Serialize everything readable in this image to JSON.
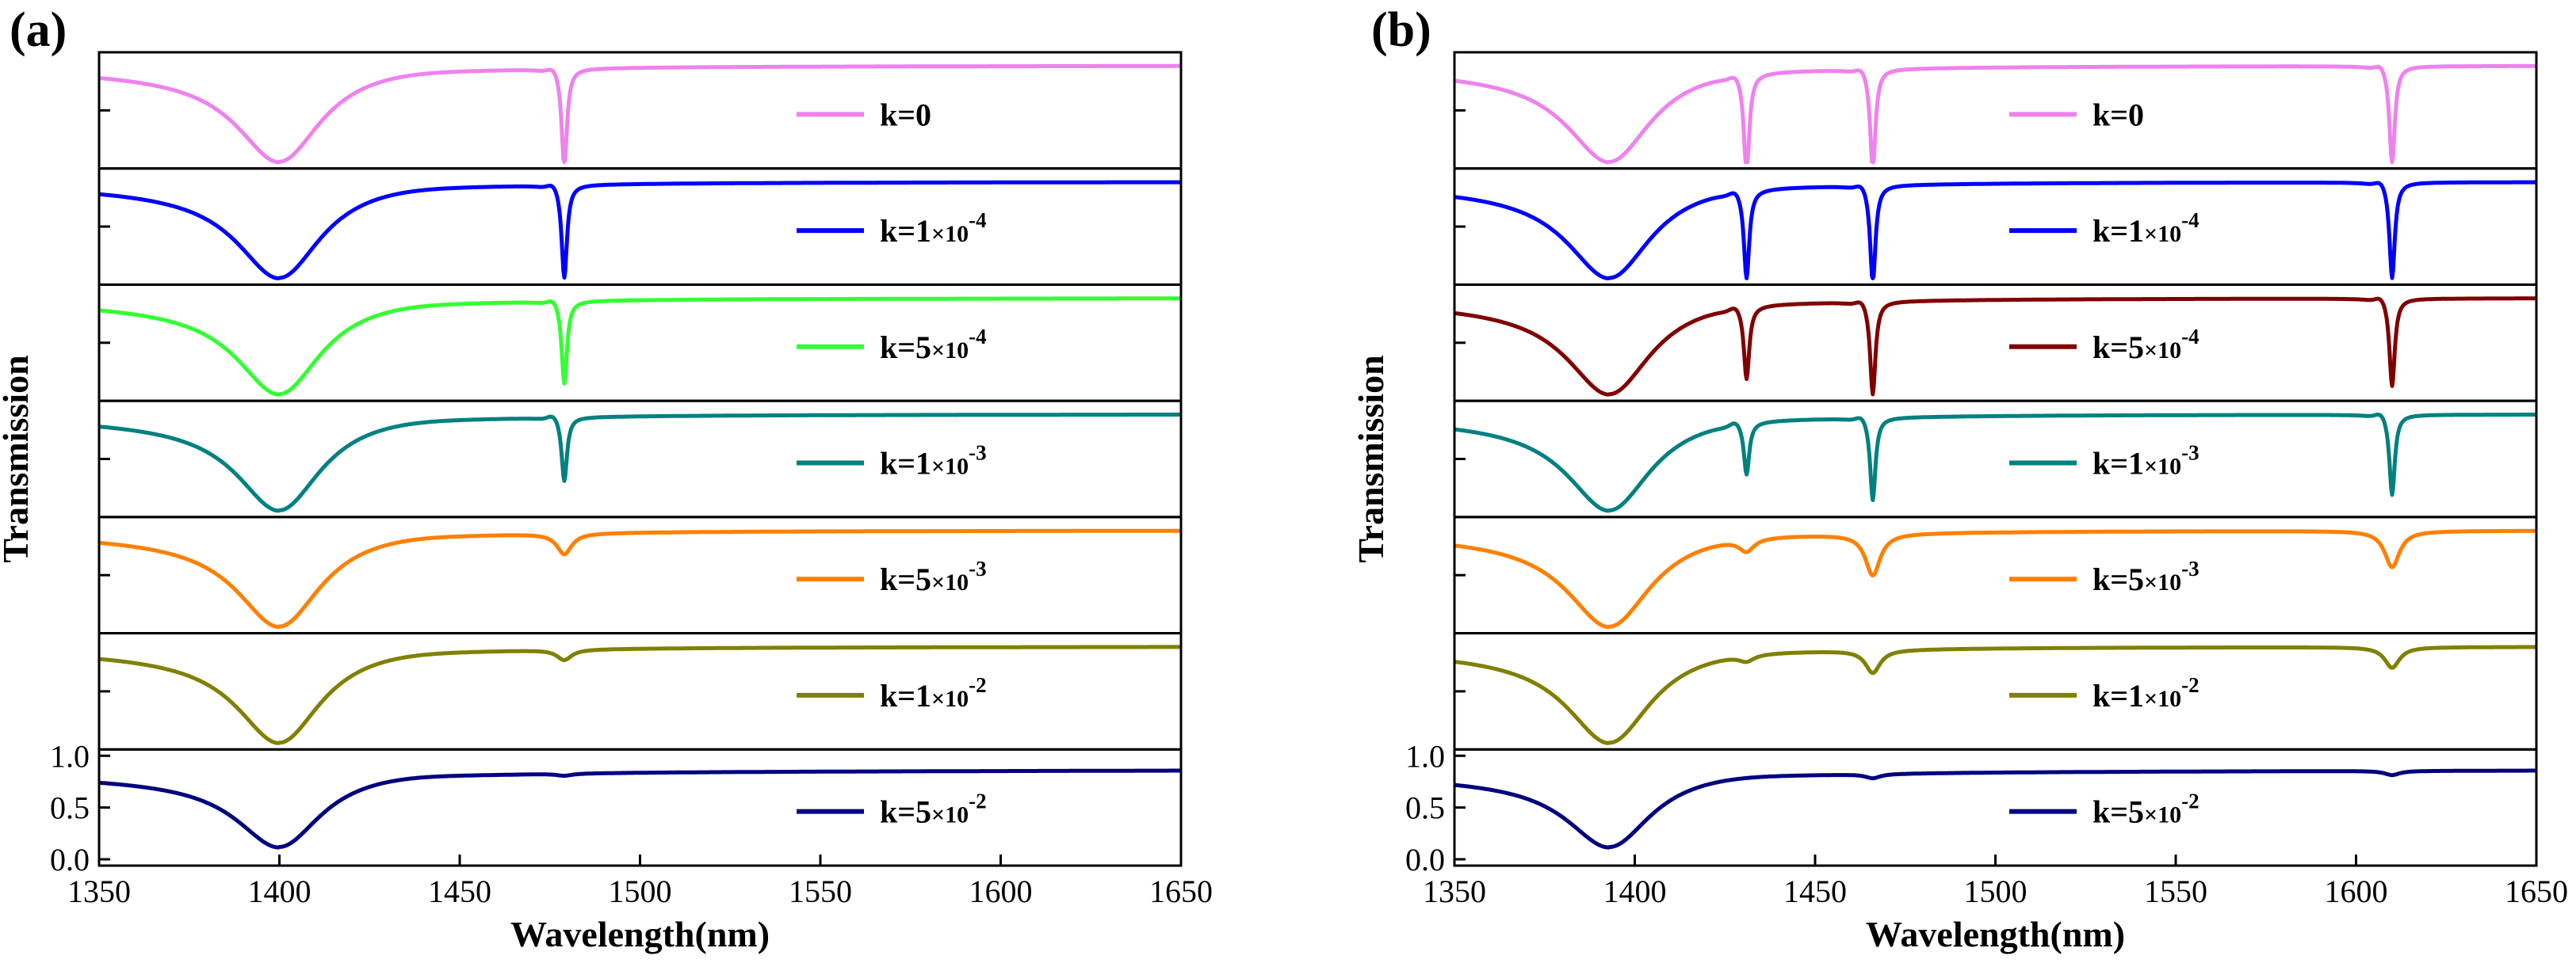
{
  "figure_labels": {
    "panel_a": "(a)",
    "panel_b": "(b)"
  },
  "axis": {
    "xlabel": "Wavelength(nm)",
    "ylabel": "Transmission",
    "x_ticks": [
      "1350",
      "1400",
      "1450",
      "1500",
      "1550",
      "1600",
      "1650"
    ],
    "y_ticks": [
      "0.0",
      "0.5",
      "1.0"
    ]
  },
  "legend_entries": [
    {
      "base": "k=0",
      "mult": "",
      "sup": ""
    },
    {
      "base": "k=1",
      "mult": "×10",
      "sup": "-4"
    },
    {
      "base": "k=5",
      "mult": "×10",
      "sup": "-4"
    },
    {
      "base": "k=1",
      "mult": "×10",
      "sup": "-3"
    },
    {
      "base": "k=5",
      "mult": "×10",
      "sup": "-3"
    },
    {
      "base": "k=1",
      "mult": "×10",
      "sup": "-2"
    },
    {
      "base": "k=5",
      "mult": "×10",
      "sup": "-2"
    }
  ],
  "colors": {
    "panel_a": [
      "#ee82ee",
      "#0000ff",
      "#33ff33",
      "#008080",
      "#ff8000",
      "#808000",
      "#000080"
    ],
    "panel_b": [
      "#ee82ee",
      "#0000ff",
      "#800000",
      "#008080",
      "#ff8000",
      "#808000",
      "#000080"
    ]
  },
  "chart_data": [
    {
      "type": "line",
      "panel": "(a)",
      "xlabel": "Wavelength(nm)",
      "ylabel": "Transmission",
      "xlim": [
        1350,
        1650
      ],
      "ylim": [
        0.0,
        1.0
      ],
      "stacked": true,
      "series": [
        {
          "name": "k=0",
          "color": "#ee82ee",
          "broad_dip": {
            "center": 1400,
            "min": 0.0,
            "baseline": 0.93
          },
          "sharp_dips": [
            {
              "center": 1479,
              "depth": 0.95,
              "fano": true
            }
          ]
        },
        {
          "name": "k=1×10^-4",
          "color": "#0000ff",
          "broad_dip": {
            "center": 1400,
            "min": 0.0,
            "baseline": 0.93
          },
          "sharp_dips": [
            {
              "center": 1479,
              "depth": 0.9,
              "fano": true
            }
          ]
        },
        {
          "name": "k=5×10^-4",
          "color": "#33ff33",
          "broad_dip": {
            "center": 1400,
            "min": 0.0,
            "baseline": 0.93
          },
          "sharp_dips": [
            {
              "center": 1479,
              "depth": 0.8,
              "fano": true
            }
          ]
        },
        {
          "name": "k=1×10^-3",
          "color": "#008080",
          "broad_dip": {
            "center": 1400,
            "min": 0.0,
            "baseline": 0.93
          },
          "sharp_dips": [
            {
              "center": 1479,
              "depth": 0.62,
              "fano": true
            }
          ]
        },
        {
          "name": "k=5×10^-3",
          "color": "#ff8000",
          "broad_dip": {
            "center": 1400,
            "min": 0.0,
            "baseline": 0.93
          },
          "sharp_dips": [
            {
              "center": 1479,
              "depth": 0.2,
              "fano": false
            }
          ]
        },
        {
          "name": "k=1×10^-2",
          "color": "#808000",
          "broad_dip": {
            "center": 1400,
            "min": 0.0,
            "baseline": 0.93
          },
          "sharp_dips": [
            {
              "center": 1479,
              "depth": 0.1,
              "fano": false
            }
          ]
        },
        {
          "name": "k=5×10^-2",
          "color": "#000080",
          "broad_dip": {
            "center": 1400,
            "min": 0.12,
            "baseline": 0.85
          },
          "sharp_dips": [
            {
              "center": 1479,
              "depth": 0.02,
              "fano": false
            }
          ]
        }
      ]
    },
    {
      "type": "line",
      "panel": "(b)",
      "xlabel": "Wavelength(nm)",
      "ylabel": "Transmission",
      "xlim": [
        1350,
        1650
      ],
      "ylim": [
        0.0,
        1.0
      ],
      "stacked": true,
      "series": [
        {
          "name": "k=0",
          "color": "#ee82ee",
          "broad_dip": {
            "center": 1393,
            "min": 0.0,
            "baseline": 0.93
          },
          "sharp_dips": [
            {
              "center": 1431,
              "depth": 0.97,
              "fano": true
            },
            {
              "center": 1466,
              "depth": 0.97,
              "fano": true
            },
            {
              "center": 1610,
              "depth": 0.95,
              "fano": true
            }
          ]
        },
        {
          "name": "k=1×10^-4",
          "color": "#0000ff",
          "broad_dip": {
            "center": 1393,
            "min": 0.0,
            "baseline": 0.93
          },
          "sharp_dips": [
            {
              "center": 1431,
              "depth": 0.85,
              "fano": true
            },
            {
              "center": 1466,
              "depth": 0.95,
              "fano": true
            },
            {
              "center": 1610,
              "depth": 0.93,
              "fano": true
            }
          ]
        },
        {
          "name": "k=5×10^-4",
          "color": "#800000",
          "broad_dip": {
            "center": 1393,
            "min": 0.0,
            "baseline": 0.93
          },
          "sharp_dips": [
            {
              "center": 1431,
              "depth": 0.7,
              "fano": true
            },
            {
              "center": 1466,
              "depth": 0.9,
              "fano": true
            },
            {
              "center": 1610,
              "depth": 0.85,
              "fano": true
            }
          ]
        },
        {
          "name": "k=1×10^-3",
          "color": "#008080",
          "broad_dip": {
            "center": 1393,
            "min": 0.0,
            "baseline": 0.93
          },
          "sharp_dips": [
            {
              "center": 1431,
              "depth": 0.5,
              "fano": true
            },
            {
              "center": 1466,
              "depth": 0.8,
              "fano": true
            },
            {
              "center": 1610,
              "depth": 0.78,
              "fano": true
            }
          ]
        },
        {
          "name": "k=5×10^-3",
          "color": "#ff8000",
          "broad_dip": {
            "center": 1393,
            "min": 0.0,
            "baseline": 0.93
          },
          "sharp_dips": [
            {
              "center": 1431,
              "depth": 0.12,
              "fano": false
            },
            {
              "center": 1466,
              "depth": 0.4,
              "fano": false
            },
            {
              "center": 1610,
              "depth": 0.35,
              "fano": false
            }
          ]
        },
        {
          "name": "k=1×10^-2",
          "color": "#808000",
          "broad_dip": {
            "center": 1393,
            "min": 0.0,
            "baseline": 0.93
          },
          "sharp_dips": [
            {
              "center": 1431,
              "depth": 0.06,
              "fano": false
            },
            {
              "center": 1466,
              "depth": 0.22,
              "fano": false
            },
            {
              "center": 1610,
              "depth": 0.2,
              "fano": false
            }
          ]
        },
        {
          "name": "k=5×10^-2",
          "color": "#000080",
          "broad_dip": {
            "center": 1393,
            "min": 0.12,
            "baseline": 0.85
          },
          "sharp_dips": [
            {
              "center": 1466,
              "depth": 0.04,
              "fano": false
            },
            {
              "center": 1610,
              "depth": 0.04,
              "fano": false
            }
          ]
        }
      ]
    }
  ]
}
